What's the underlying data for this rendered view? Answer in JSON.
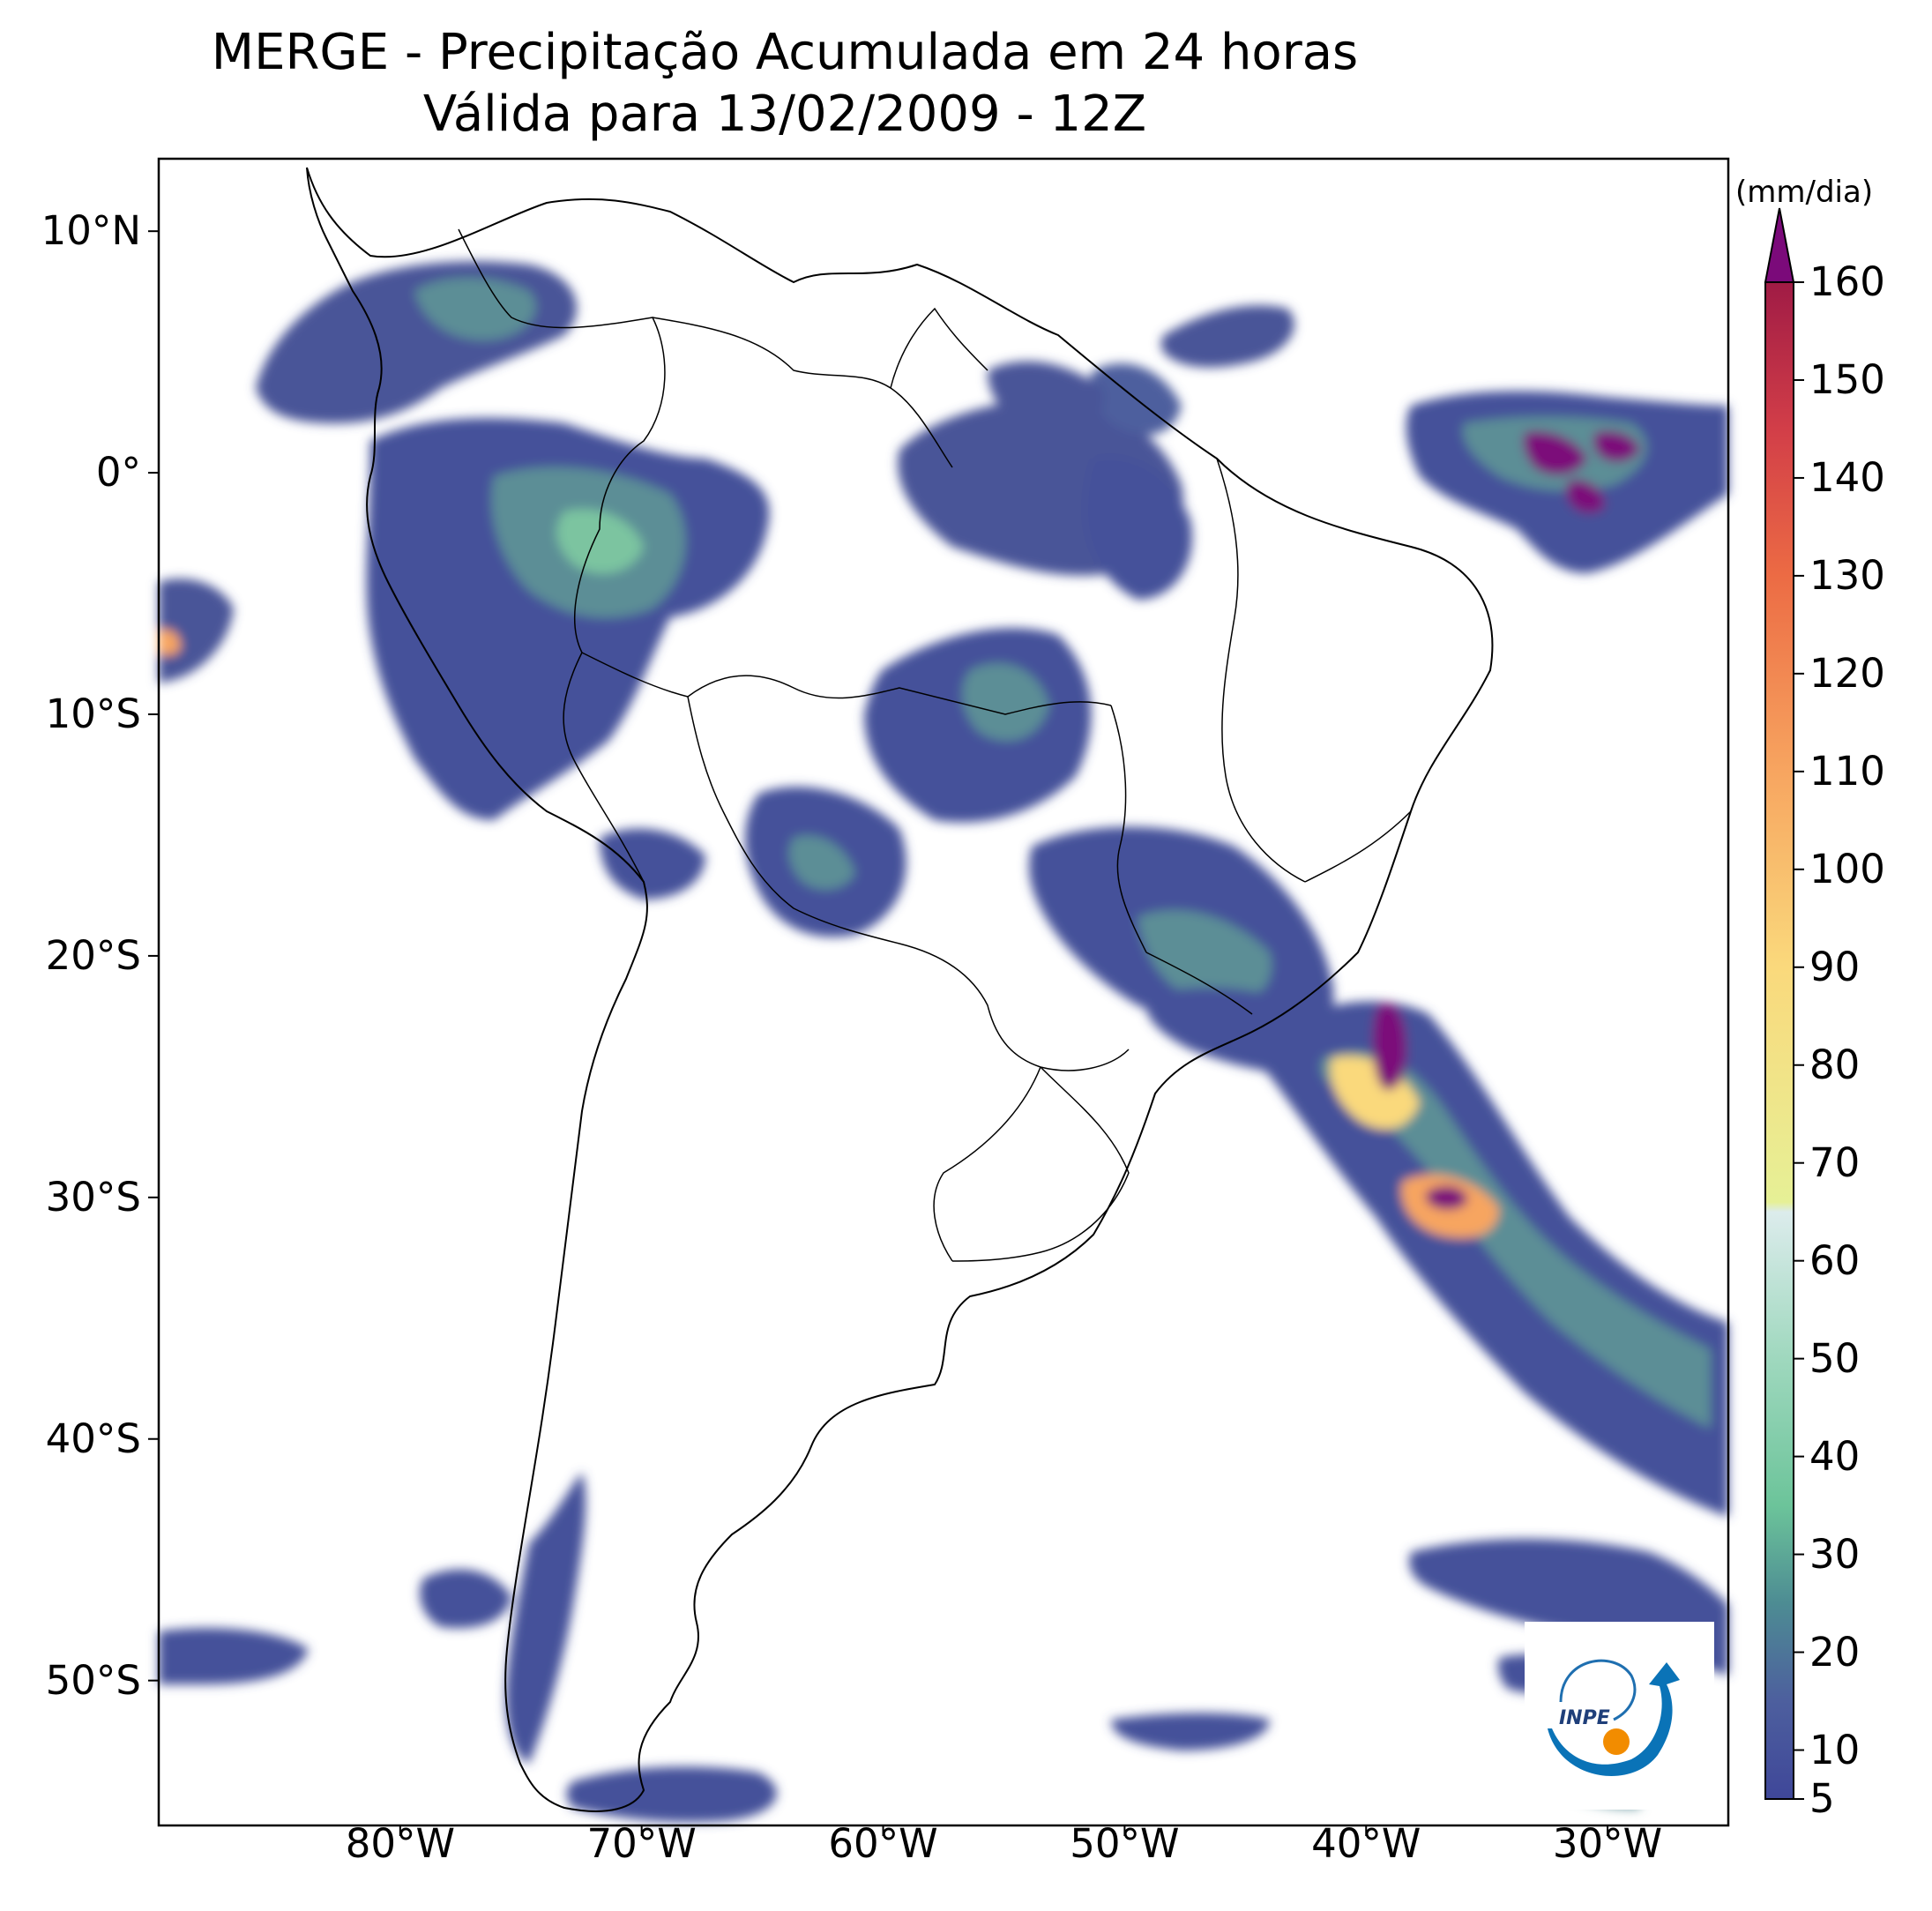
{
  "title": {
    "line1": "MERGE - Precipitação Acumulada em 24 horas",
    "line2": "Válida para 13/02/2009 - 12Z"
  },
  "map": {
    "extent": {
      "lon_min": -90,
      "lon_max": -25,
      "lat_min": -56,
      "lat_max": 13
    },
    "lat_ticks": [
      {
        "value": 10,
        "label": "10°N"
      },
      {
        "value": 0,
        "label": "0°"
      },
      {
        "value": -10,
        "label": "10°S"
      },
      {
        "value": -20,
        "label": "20°S"
      },
      {
        "value": -30,
        "label": "30°S"
      },
      {
        "value": -40,
        "label": "40°S"
      },
      {
        "value": -50,
        "label": "50°S"
      }
    ],
    "lon_ticks": [
      {
        "value": -80,
        "label": "80°W"
      },
      {
        "value": -70,
        "label": "70°W"
      },
      {
        "value": -60,
        "label": "60°W"
      },
      {
        "value": -50,
        "label": "50°W"
      },
      {
        "value": -40,
        "label": "40°W"
      },
      {
        "value": -30,
        "label": "30°W"
      }
    ]
  },
  "colorbar": {
    "unit": "(mm/dia)",
    "min": 5,
    "max": 160,
    "tick_labels": [
      "5",
      "10",
      "20",
      "30",
      "40",
      "50",
      "60",
      "70",
      "80",
      "90",
      "100",
      "110",
      "120",
      "130",
      "140",
      "150",
      "160"
    ],
    "extend_color": "#7b0a7a",
    "stops": [
      {
        "value": 5,
        "color": "#3f4799"
      },
      {
        "value": 15,
        "color": "#4d5f9e"
      },
      {
        "value": 25,
        "color": "#4d8c93"
      },
      {
        "value": 35,
        "color": "#6cc49a"
      },
      {
        "value": 50,
        "color": "#9fd8be"
      },
      {
        "value": 65,
        "color": "#dcecec"
      },
      {
        "value": 66,
        "color": "#e6f096"
      },
      {
        "value": 90,
        "color": "#fad97c"
      },
      {
        "value": 110,
        "color": "#f7a560"
      },
      {
        "value": 130,
        "color": "#ec6b44"
      },
      {
        "value": 145,
        "color": "#d23e48"
      },
      {
        "value": 160,
        "color": "#a01b45"
      }
    ]
  },
  "logo": {
    "text": "INPE"
  }
}
